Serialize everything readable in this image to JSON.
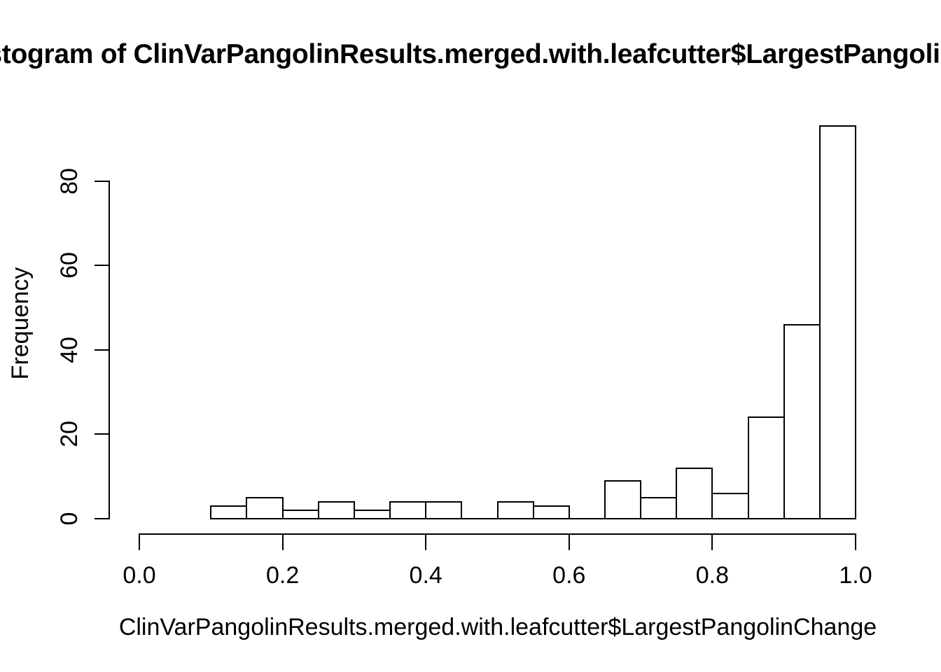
{
  "chart": {
    "title": "Histogram of ClinVarPangolinResults.merged.with.leafcutter$LargestPangolinChange",
    "xlabel": "ClinVarPangolinResults.merged.with.leafcutter$LargestPangolinChange",
    "ylabel": "Frequency"
  },
  "chart_data": {
    "type": "bar",
    "subtype": "histogram",
    "title": "Histogram of ClinVarPangolinResults.merged.with.leafcutter$LargestPangolinChange",
    "xlabel": "ClinVarPangolinResults.merged.with.leafcutter$LargestPangolinChange",
    "ylabel": "Frequency",
    "bin_width": 0.05,
    "bin_edges": [
      0.1,
      0.15,
      0.2,
      0.25,
      0.3,
      0.35,
      0.4,
      0.45,
      0.5,
      0.55,
      0.6,
      0.65,
      0.7,
      0.75,
      0.8,
      0.85,
      0.9,
      0.95,
      1.0
    ],
    "counts": [
      3,
      5,
      2,
      4,
      2,
      4,
      4,
      0,
      4,
      3,
      0,
      9,
      5,
      12,
      6,
      24,
      46,
      93
    ],
    "total_count": 226,
    "xlim": [
      0.0,
      1.0
    ],
    "ylim": [
      0,
      80
    ],
    "xticks": {
      "values": [
        0.0,
        0.2,
        0.4,
        0.6,
        0.8,
        1.0
      ],
      "labels": [
        "0.0",
        "0.2",
        "0.4",
        "0.6",
        "0.8",
        "1.0"
      ]
    },
    "yticks": {
      "values": [
        0,
        20,
        40,
        60,
        80
      ],
      "labels": [
        "0",
        "20",
        "40",
        "60",
        "80"
      ]
    },
    "grid": false,
    "legend": "none",
    "bar_fill": "#FFFFFF",
    "line_color": "#000000",
    "background": "#FFFFFF"
  }
}
